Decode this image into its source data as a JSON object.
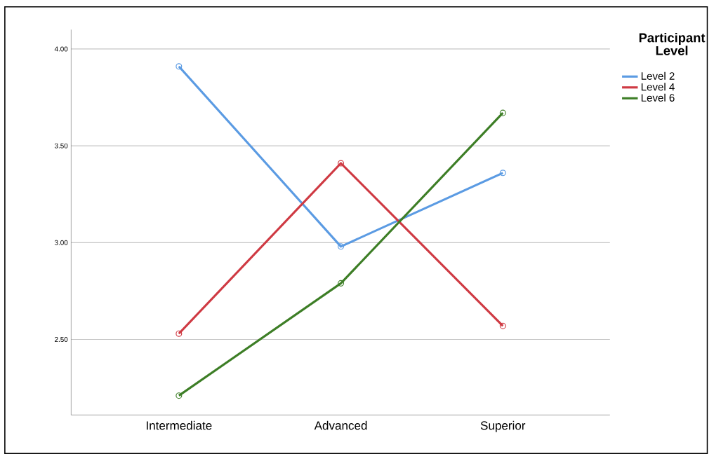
{
  "chart_data": {
    "type": "line",
    "categories": [
      "Intermediate",
      "Advanced",
      "Superior"
    ],
    "legend_title": "Participant Level",
    "series": [
      {
        "name": "Level 2",
        "color": "#5b9be3",
        "values": [
          3.91,
          2.98,
          3.36
        ]
      },
      {
        "name": "Level 4",
        "color": "#cf3a43",
        "values": [
          2.53,
          3.41,
          2.57
        ]
      },
      {
        "name": "Level 6",
        "color": "#3d7e26",
        "values": [
          2.21,
          2.79,
          3.67
        ]
      }
    ],
    "ylim": [
      2.11,
      4.1
    ],
    "yticks": [
      {
        "value": 2.5,
        "label": "2.50"
      },
      {
        "value": 3.0,
        "label": "3.00"
      },
      {
        "value": 3.5,
        "label": "3.50"
      },
      {
        "value": 4.0,
        "label": "4.00"
      }
    ],
    "grid": "y",
    "legend": "top right",
    "marker": "circle",
    "line_style": "solid"
  }
}
